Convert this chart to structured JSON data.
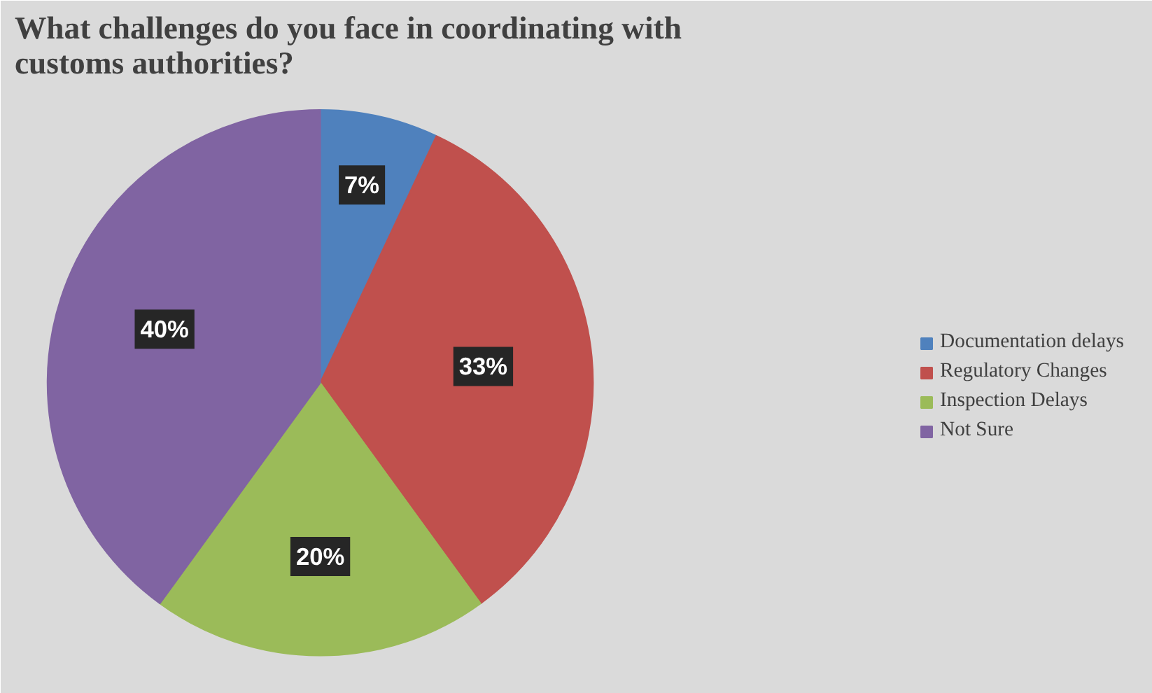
{
  "chart_data": {
    "type": "pie",
    "title": "What challenges do you face in coordinating with customs authorities?",
    "categories": [
      "Documentation delays",
      "Regulatory Changes",
      "Inspection Delays",
      "Not Sure"
    ],
    "values": [
      7,
      33,
      20,
      40
    ],
    "colors": [
      "#4f81bd",
      "#c0504d",
      "#9bbb59",
      "#8064a2"
    ],
    "value_labels": [
      "7%",
      "33%",
      "20%",
      "40%"
    ],
    "legend": "right"
  }
}
